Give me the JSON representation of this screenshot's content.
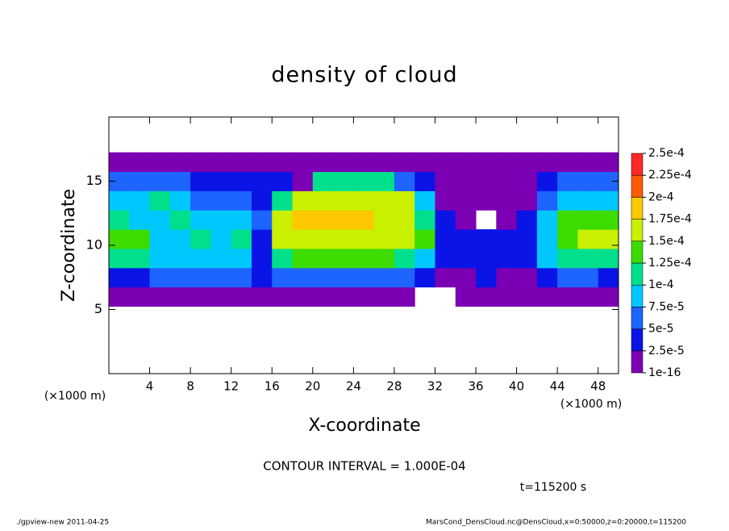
{
  "chart_data": {
    "type": "heatmap",
    "title": "density of cloud",
    "x_label": "X-coordinate",
    "y_label": "Z-coordinate",
    "x_unit_label": "(×1000 m)",
    "y_unit_label": "(×1000 m)",
    "contour_interval_text": "CONTOUR INTERVAL = 1.000E-04",
    "time_text": "t=115200 s",
    "footer_left": "./gpview-new   2011-04-25",
    "footer_right": "MarsCond_DensCloud.nc@DensCloud,x=0:50000,z=0:20000,t=115200",
    "xlim": [
      0,
      50
    ],
    "ylim": [
      0,
      20
    ],
    "xticks": [
      4,
      8,
      12,
      16,
      20,
      24,
      28,
      32,
      36,
      40,
      44,
      48
    ],
    "yticks": [
      5,
      10,
      15
    ],
    "x": [
      1,
      3,
      5,
      7,
      9,
      11,
      13,
      15,
      17,
      19,
      21,
      23,
      25,
      27,
      29,
      31,
      33,
      35,
      37,
      39,
      41,
      43,
      45,
      47,
      49
    ],
    "y": [
      6,
      7.5,
      9,
      10.5,
      12,
      13.5,
      15,
      16.5
    ],
    "values": [
      [
        1.5e-05,
        1.5e-05,
        2e-05,
        2e-05,
        1.5e-05,
        1.5e-05,
        2e-05,
        2e-05,
        1.5e-05,
        1.5e-05,
        1.5e-05,
        1.5e-05,
        1.5e-05,
        1.5e-05,
        1.5e-05,
        null,
        null,
        1.5e-05,
        1.5e-05,
        1.5e-05,
        1.5e-05,
        1.5e-05,
        1.5e-05,
        1.5e-05,
        1.5e-05
      ],
      [
        4e-05,
        4.5e-05,
        5e-05,
        5.5e-05,
        5e-05,
        6e-05,
        5.5e-05,
        3e-05,
        6.5e-05,
        7e-05,
        7e-05,
        7e-05,
        7e-05,
        6.5e-05,
        5e-05,
        3e-05,
        2e-05,
        2e-05,
        2.5e-05,
        2e-05,
        2e-05,
        4.5e-05,
        5e-05,
        5e-05,
        4.5e-05
      ],
      [
        0.00011,
        0.000105,
        8e-05,
        9e-05,
        8.5e-05,
        9e-05,
        8e-05,
        4e-05,
        0.00012,
        0.00013,
        0.000135,
        0.000135,
        0.00013,
        0.000125,
        0.00011,
        8e-05,
        3e-05,
        3.5e-05,
        3e-05,
        4e-05,
        3.5e-05,
        9e-05,
        0.0001,
        0.00011,
        0.000105
      ],
      [
        0.00013,
        0.000125,
        9e-05,
        8e-05,
        0.00011,
        9e-05,
        0.0001,
        4e-05,
        0.000155,
        0.00016,
        0.000165,
        0.000165,
        0.00016,
        0.00016,
        0.000155,
        0.00013,
        3e-05,
        3.5e-05,
        2.5e-05,
        3e-05,
        4e-05,
        8.5e-05,
        0.000145,
        0.00016,
        0.00015
      ],
      [
        0.000115,
        9e-05,
        8e-05,
        0.000115,
        8.5e-05,
        9e-05,
        8e-05,
        5e-05,
        0.00016,
        0.000175,
        0.00018,
        0.00018,
        0.000175,
        0.00017,
        0.000165,
        0.00011,
        3e-05,
        2e-05,
        null,
        2e-05,
        3e-05,
        9e-05,
        0.00013,
        0.000145,
        0.00014
      ],
      [
        8e-05,
        7.5e-05,
        0.00011,
        9e-05,
        7e-05,
        6.5e-05,
        6e-05,
        4e-05,
        0.00012,
        0.00016,
        0.000165,
        0.000165,
        0.00016,
        0.00016,
        0.00015,
        8e-05,
        2e-05,
        1.5e-05,
        1.5e-05,
        1.5e-05,
        2e-05,
        5e-05,
        8e-05,
        9e-05,
        8e-05
      ],
      [
        6e-05,
        6.5e-05,
        6e-05,
        5e-05,
        4.5e-05,
        4e-05,
        4e-05,
        3e-05,
        3e-05,
        2e-05,
        0.000105,
        0.00011,
        0.000105,
        0.0001,
        7e-05,
        4e-05,
        1.5e-05,
        1.5e-05,
        1.5e-05,
        1.5e-05,
        1.5e-05,
        4e-05,
        5e-05,
        5.5e-05,
        5e-05
      ],
      [
        1.5e-05,
        1.5e-05,
        1.5e-05,
        1.5e-05,
        1.5e-05,
        1.5e-05,
        1.5e-05,
        1.5e-05,
        1.5e-05,
        1.5e-05,
        1.5e-05,
        1.5e-05,
        1.5e-05,
        1.5e-05,
        1.5e-05,
        1.5e-05,
        1.5e-05,
        1.5e-05,
        1.5e-05,
        1.5e-05,
        1.5e-05,
        1.5e-05,
        1.5e-05,
        1.5e-05,
        1.5e-05
      ]
    ],
    "colorbar_levels": [
      {
        "value": 1e-16,
        "label": "1e-16"
      },
      {
        "value": 2.5e-05,
        "label": "2.5e-5"
      },
      {
        "value": 5e-05,
        "label": "5e-5"
      },
      {
        "value": 7.5e-05,
        "label": "7.5e-5"
      },
      {
        "value": 0.0001,
        "label": "1e-4"
      },
      {
        "value": 0.000125,
        "label": "1.25e-4"
      },
      {
        "value": 0.00015,
        "label": "1.5e-4"
      },
      {
        "value": 0.000175,
        "label": "1.75e-4"
      },
      {
        "value": 0.0002,
        "label": "2e-4"
      },
      {
        "value": 0.000225,
        "label": "2.25e-4"
      },
      {
        "value": 0.00025,
        "label": "2.5e-4"
      }
    ],
    "colors": [
      "#7b00b4",
      "#0a14e6",
      "#1e64ff",
      "#00c8ff",
      "#00e08c",
      "#3cdc00",
      "#c8f000",
      "#ffc800",
      "#ff5a00",
      "#ff2828",
      "#ff9a9a"
    ]
  }
}
